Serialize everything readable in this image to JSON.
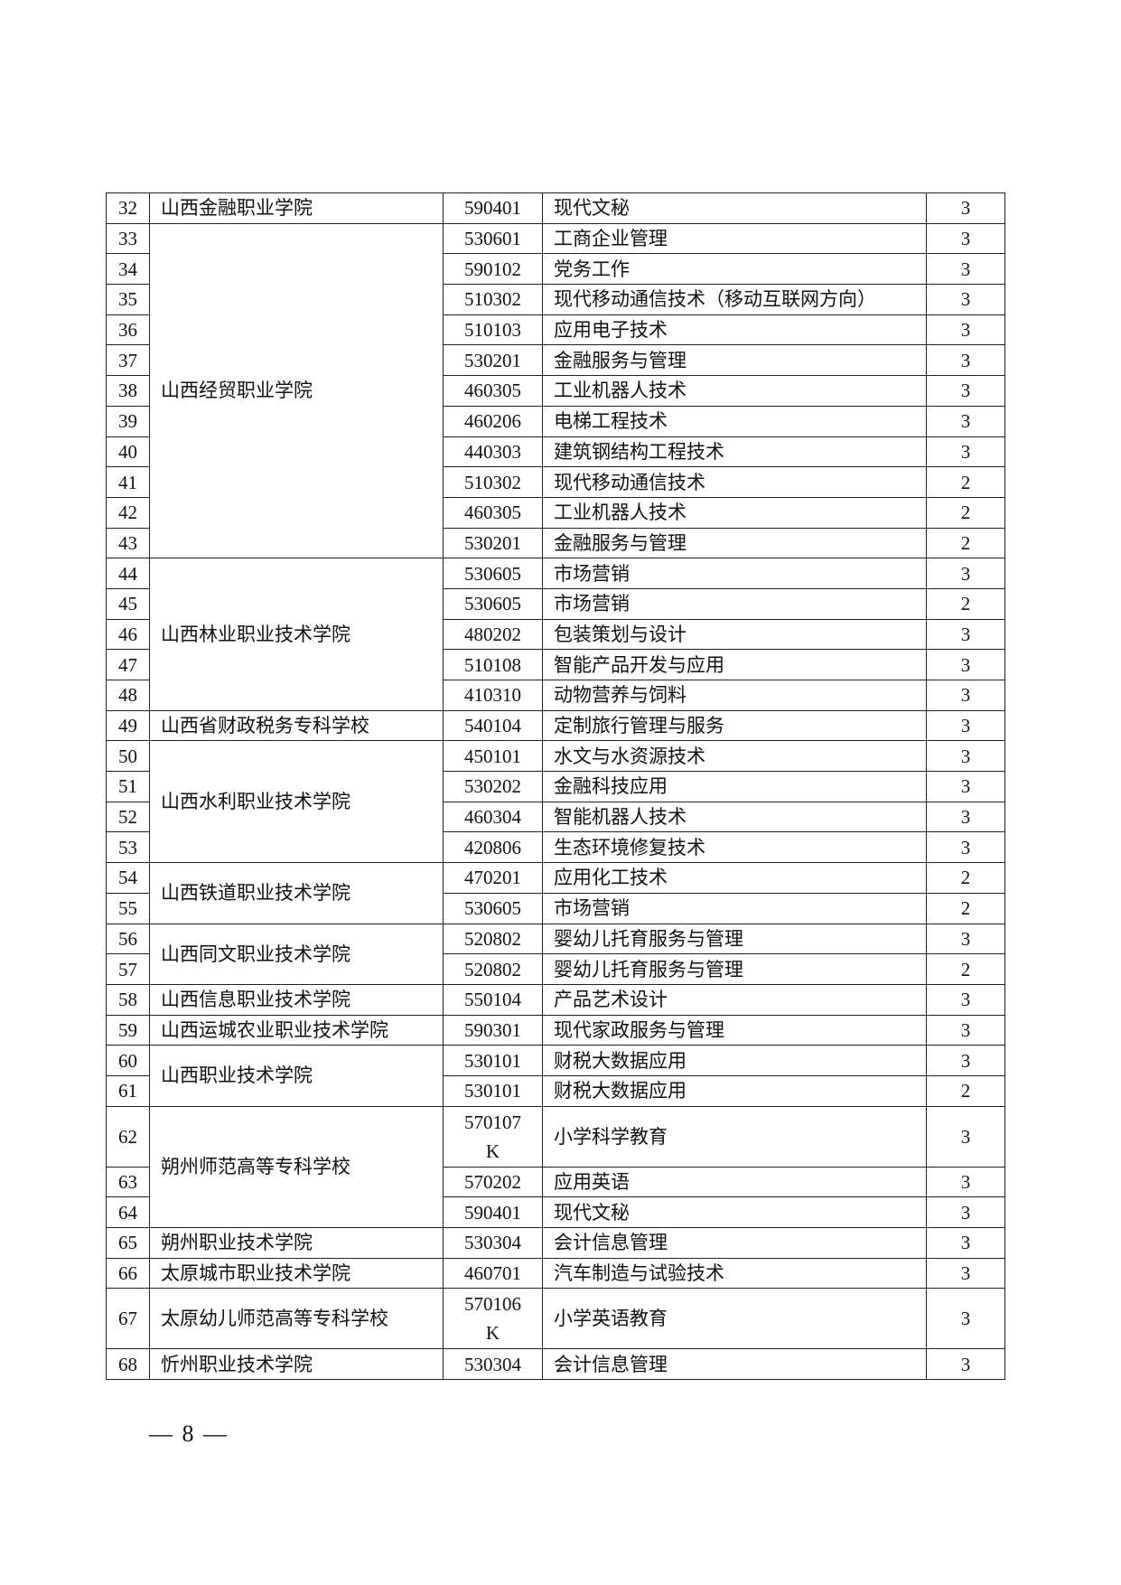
{
  "table": {
    "groups": [
      {
        "school": "山西金融职业学院",
        "rows": [
          [
            "32",
            "590401",
            "现代文秘",
            "3"
          ]
        ]
      },
      {
        "school": "山西经贸职业学院",
        "rows": [
          [
            "33",
            "530601",
            "工商企业管理",
            "3"
          ],
          [
            "34",
            "590102",
            "党务工作",
            "3"
          ],
          [
            "35",
            "510302",
            "现代移动通信技术（移动互联网方向）",
            "3"
          ],
          [
            "36",
            "510103",
            "应用电子技术",
            "3"
          ],
          [
            "37",
            "530201",
            "金融服务与管理",
            "3"
          ],
          [
            "38",
            "460305",
            "工业机器人技术",
            "3"
          ],
          [
            "39",
            "460206",
            "电梯工程技术",
            "3"
          ],
          [
            "40",
            "440303",
            "建筑钢结构工程技术",
            "3"
          ],
          [
            "41",
            "510302",
            "现代移动通信技术",
            "2"
          ],
          [
            "42",
            "460305",
            "工业机器人技术",
            "2"
          ],
          [
            "43",
            "530201",
            "金融服务与管理",
            "2"
          ]
        ]
      },
      {
        "school": "山西林业职业技术学院",
        "rows": [
          [
            "44",
            "530605",
            "市场营销",
            "3"
          ],
          [
            "45",
            "530605",
            "市场营销",
            "2"
          ],
          [
            "46",
            "480202",
            "包装策划与设计",
            "3"
          ],
          [
            "47",
            "510108",
            "智能产品开发与应用",
            "3"
          ],
          [
            "48",
            "410310",
            "动物营养与饲料",
            "3"
          ]
        ]
      },
      {
        "school": "山西省财政税务专科学校",
        "rows": [
          [
            "49",
            "540104",
            "定制旅行管理与服务",
            "3"
          ]
        ]
      },
      {
        "school": "山西水利职业技术学院",
        "rows": [
          [
            "50",
            "450101",
            "水文与水资源技术",
            "3"
          ],
          [
            "51",
            "530202",
            "金融科技应用",
            "3"
          ],
          [
            "52",
            "460304",
            "智能机器人技术",
            "3"
          ],
          [
            "53",
            "420806",
            "生态环境修复技术",
            "3"
          ]
        ]
      },
      {
        "school": "山西铁道职业技术学院",
        "rows": [
          [
            "54",
            "470201",
            "应用化工技术",
            "2"
          ],
          [
            "55",
            "530605",
            "市场营销",
            "2"
          ]
        ]
      },
      {
        "school": "山西同文职业技术学院",
        "rows": [
          [
            "56",
            "520802",
            "婴幼儿托育服务与管理",
            "3"
          ],
          [
            "57",
            "520802",
            "婴幼儿托育服务与管理",
            "2"
          ]
        ]
      },
      {
        "school": "山西信息职业技术学院",
        "rows": [
          [
            "58",
            "550104",
            "产品艺术设计",
            "3"
          ]
        ]
      },
      {
        "school": "山西运城农业职业技术学院",
        "rows": [
          [
            "59",
            "590301",
            "现代家政服务与管理",
            "3"
          ]
        ]
      },
      {
        "school": "山西职业技术学院",
        "rows": [
          [
            "60",
            "530101",
            "财税大数据应用",
            "3"
          ],
          [
            "61",
            "530101",
            "财税大数据应用",
            "2"
          ]
        ]
      },
      {
        "school": "朔州师范高等专科学校",
        "rows": [
          [
            "62",
            "570107K",
            "小学科学教育",
            "3"
          ],
          [
            "63",
            "570202",
            "应用英语",
            "3"
          ],
          [
            "64",
            "590401",
            "现代文秘",
            "3"
          ]
        ]
      },
      {
        "school": "朔州职业技术学院",
        "rows": [
          [
            "65",
            "530304",
            "会计信息管理",
            "3"
          ]
        ]
      },
      {
        "school": "太原城市职业技术学院",
        "rows": [
          [
            "66",
            "460701",
            "汽车制造与试验技术",
            "3"
          ]
        ]
      },
      {
        "school": "太原幼儿师范高等专科学校",
        "rows": [
          [
            "67",
            "570106K",
            "小学英语教育",
            "3"
          ]
        ]
      },
      {
        "school": "忻州职业技术学院",
        "rows": [
          [
            "68",
            "530304",
            "会计信息管理",
            "3"
          ]
        ]
      }
    ]
  },
  "footer": {
    "page_number": "— 8 —"
  }
}
